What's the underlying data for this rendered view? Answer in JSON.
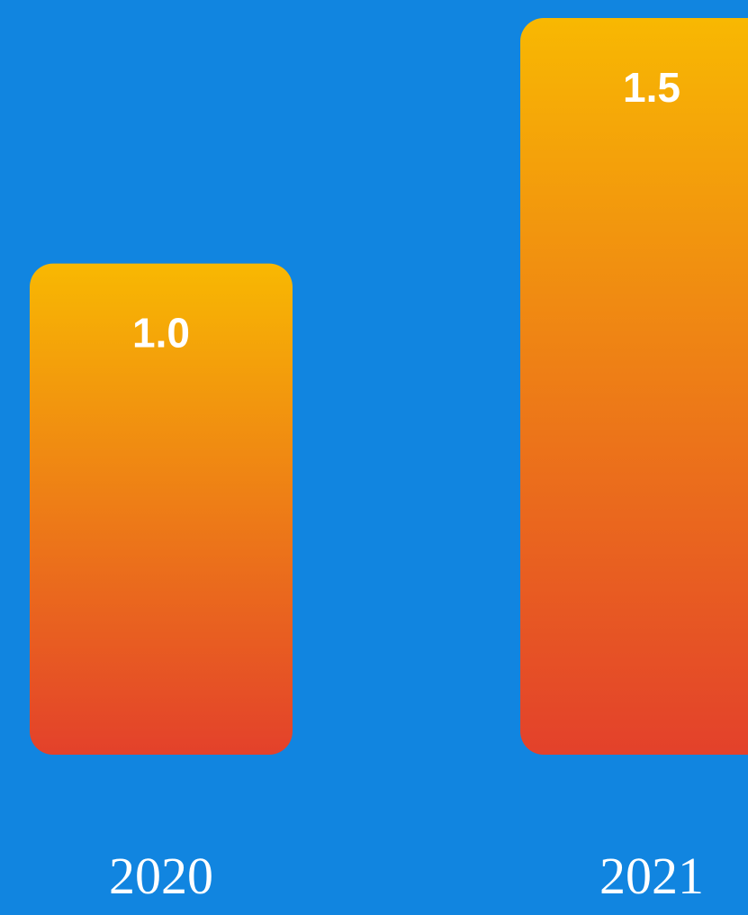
{
  "chart_data": {
    "type": "bar",
    "categories": [
      "2020",
      "2021"
    ],
    "values": [
      1.0,
      1.5
    ],
    "value_labels": [
      "1.0",
      "1.5"
    ],
    "title": "",
    "xlabel": "",
    "ylabel": "",
    "ylim": [
      0,
      1.5
    ],
    "grid": false,
    "legend": "none"
  },
  "colors": {
    "background": "#1185e0",
    "bar_top": "#f8b802",
    "bar_bottom": "#e3412b",
    "text": "#ffffff"
  }
}
